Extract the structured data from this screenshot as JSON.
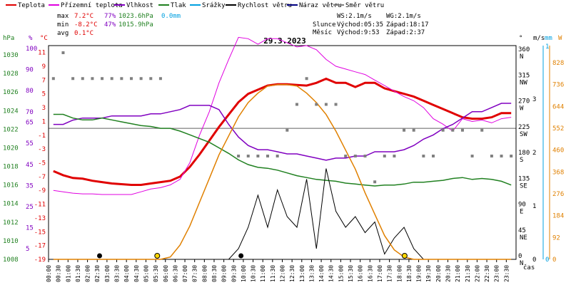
{
  "legend": [
    {
      "label": "Teplota",
      "color": "#e00000"
    },
    {
      "label": "Přízemní teplota",
      "color": "#e000e0"
    },
    {
      "label": "Vlhkost",
      "color": "#8000c0"
    },
    {
      "label": "Tlak",
      "color": "#208020"
    },
    {
      "label": "Srážky",
      "color": "#00a0e0"
    },
    {
      "label": "Rychlost větru",
      "color": "#000000"
    },
    {
      "label": "Náraz větru",
      "color": "#000080"
    },
    {
      "label": "Směr větru",
      "color": "#808080"
    }
  ],
  "stats": {
    "max": {
      "label": "max",
      "temp": "7.2°C",
      "hum": "77%",
      "press": "1023.6hPa",
      "rain": "0.0mm"
    },
    "min": {
      "label": "min",
      "temp": "-8.2°C",
      "hum": "47%",
      "press": "1015.9hPa"
    },
    "avg": {
      "label": "avg",
      "temp": "0.1°C"
    }
  },
  "wind_info": {
    "ws": "WS:2.1m/s",
    "wg": "WG:2.1m/s"
  },
  "sun": {
    "label": "Slunce",
    "sunrise": "Východ:05:35",
    "sunset": "Západ:18:17"
  },
  "moon": {
    "label": "Měsíc",
    "moonrise": "Východ:9:53",
    "moonset": "Západ:2:37"
  },
  "date": "29.3.2023",
  "axis_units": {
    "hpa": "hPa",
    "pct": "%",
    "degc": "°C",
    "deg": "°",
    "ms": "m/s",
    "mm": "mm",
    "wm2": "W"
  },
  "x_axis_label": "čas",
  "chart_data": {
    "type": "line",
    "x": [
      "00:00",
      "00:30",
      "01:00",
      "01:30",
      "02:00",
      "02:30",
      "03:00",
      "03:30",
      "04:00",
      "04:30",
      "05:00",
      "05:30",
      "06:00",
      "06:30",
      "07:00",
      "07:30",
      "08:00",
      "08:30",
      "09:00",
      "09:30",
      "10:00",
      "10:30",
      "11:00",
      "11:30",
      "12:00",
      "12:30",
      "13:00",
      "13:30",
      "14:00",
      "14:30",
      "15:00",
      "15:30",
      "16:00",
      "16:30",
      "17:00",
      "17:30",
      "18:00",
      "18:30",
      "19:00",
      "19:30",
      "20:00",
      "20:30",
      "21:00",
      "21:30",
      "22:00",
      "22:30",
      "23:00",
      "23:30"
    ],
    "axes": {
      "pressure": {
        "unit": "hPa",
        "ticks": [
          1008,
          1010,
          1012,
          1014,
          1016,
          1018,
          1020,
          1022,
          1024,
          1026,
          1028,
          1030
        ],
        "color": "#208020"
      },
      "humidity": {
        "unit": "%",
        "ticks": [
          5,
          15,
          25,
          35,
          45,
          55,
          65,
          70,
          80,
          90,
          100
        ],
        "color": "#8000c0"
      },
      "temperature": {
        "unit": "°C",
        "ticks": [
          -19,
          -17,
          -15,
          -13,
          -11,
          -9,
          -7,
          -5,
          -3,
          -1,
          1,
          3,
          5,
          7,
          9,
          11
        ],
        "color": "#e00000"
      },
      "wind_dir": {
        "unit": "°",
        "ticks": [
          {
            "v": 0,
            "d": "N"
          },
          {
            "v": 45,
            "d": "NE"
          },
          {
            "v": 90,
            "d": "E"
          },
          {
            "v": 135,
            "d": "SE"
          },
          {
            "v": 180,
            "d": "S"
          },
          {
            "v": 225,
            "d": "SW"
          },
          {
            "v": 270,
            "d": "W"
          },
          {
            "v": 315,
            "d": "NW"
          },
          {
            "v": 360,
            "d": "N"
          }
        ]
      },
      "wind_speed": {
        "unit": "m/s",
        "ticks": [
          0,
          1,
          2,
          3
        ],
        "color": "#000000"
      },
      "rain": {
        "unit": "mm",
        "ticks": [
          0,
          1
        ],
        "color": "#00a0e0"
      },
      "radiation": {
        "unit": "W",
        "ticks": [
          0,
          92,
          184,
          276,
          368,
          460,
          552,
          644,
          736,
          828
        ],
        "color": "#e08000"
      }
    },
    "series": [
      {
        "name": "Teplota",
        "axis": "temperature",
        "color": "#e00000",
        "values": [
          -6.2,
          -6.8,
          -7.2,
          -7.3,
          -7.6,
          -7.8,
          -8.0,
          -8.1,
          -8.2,
          -8.2,
          -8.0,
          -7.8,
          -7.6,
          -7.0,
          -5.6,
          -3.8,
          -1.8,
          0.2,
          2.0,
          3.8,
          5.0,
          5.6,
          6.2,
          6.4,
          6.4,
          6.3,
          6.2,
          6.6,
          7.2,
          6.6,
          6.6,
          6.0,
          6.6,
          6.6,
          5.8,
          5.4,
          5.0,
          4.6,
          4.0,
          3.4,
          2.8,
          2.2,
          1.6,
          1.4,
          1.4,
          1.6,
          2.2,
          2.2
        ]
      },
      {
        "name": "Přízemní teplota",
        "axis": "temperature",
        "color": "#e000e0",
        "values": [
          -9.0,
          -9.2,
          -9.4,
          -9.5,
          -9.5,
          -9.6,
          -9.6,
          -9.6,
          -9.6,
          -9.2,
          -8.8,
          -8.6,
          -8.2,
          -7.4,
          -5.0,
          -1.0,
          2.4,
          6.6,
          10.0,
          13.2,
          13.0,
          12.2,
          13.0,
          13.0,
          12.4,
          11.8,
          12.0,
          11.4,
          10.0,
          9.0,
          8.6,
          8.2,
          7.8,
          7.0,
          6.2,
          5.4,
          4.6,
          4.0,
          3.0,
          1.4,
          0.6,
          -0.4,
          1.4,
          1.0,
          1.2,
          0.8,
          1.4,
          1.6
        ]
      },
      {
        "name": "Vlhkost",
        "axis": "humidity",
        "color": "#8000c0",
        "values": [
          64,
          64,
          66,
          67,
          67,
          67,
          68,
          68,
          68,
          68,
          69,
          69,
          70,
          71,
          73,
          73,
          73,
          71,
          64,
          58,
          54,
          52,
          52,
          51,
          50,
          50,
          49,
          48,
          47,
          48,
          48,
          49,
          49,
          51,
          51,
          51,
          52,
          54,
          57,
          59,
          62,
          64,
          67,
          70,
          70,
          72,
          74,
          74
        ]
      },
      {
        "name": "Tlak",
        "axis": "pressure",
        "color": "#208020",
        "values": [
          1023.6,
          1023.6,
          1023.2,
          1023.0,
          1023.0,
          1023.2,
          1023.0,
          1022.8,
          1022.6,
          1022.4,
          1022.3,
          1022.1,
          1022.1,
          1021.8,
          1021.4,
          1021.0,
          1020.6,
          1020.0,
          1019.4,
          1018.7,
          1018.2,
          1017.9,
          1017.8,
          1017.6,
          1017.3,
          1017.0,
          1016.8,
          1016.6,
          1016.5,
          1016.4,
          1016.2,
          1016.1,
          1016.0,
          1015.9,
          1016.0,
          1016.0,
          1016.1,
          1016.3,
          1016.3,
          1016.4,
          1016.5,
          1016.7,
          1016.8,
          1016.6,
          1016.7,
          1016.6,
          1016.4,
          1016.0
        ]
      },
      {
        "name": "Rychlost větru",
        "axis": "wind_speed",
        "color": "#000000",
        "values": [
          0,
          0,
          0,
          0,
          0,
          0,
          0,
          0,
          0,
          0,
          0,
          0,
          0,
          0,
          0,
          0,
          0,
          0,
          0,
          0.2,
          0.6,
          1.2,
          0.6,
          1.3,
          0.8,
          0.6,
          1.5,
          0.2,
          1.7,
          0.9,
          0.6,
          0.8,
          0.5,
          0.7,
          0.1,
          0.4,
          0.6,
          0.2,
          0,
          0,
          0,
          0,
          0,
          0,
          0,
          0,
          0,
          0
        ]
      },
      {
        "name": "Sluneční záření",
        "axis": "radiation",
        "color": "#e08000",
        "values": [
          0,
          0,
          0,
          0,
          0,
          0,
          0,
          0,
          0,
          0,
          0,
          0,
          10,
          60,
          140,
          240,
          340,
          440,
          520,
          600,
          660,
          700,
          730,
          736,
          736,
          730,
          700,
          660,
          610,
          540,
          460,
          380,
          280,
          190,
          100,
          40,
          10,
          0,
          0,
          0,
          0,
          0,
          0,
          0,
          0,
          0,
          0,
          0
        ]
      },
      {
        "name": "Směr větru",
        "axis": "wind_dir",
        "color": "#808080",
        "values": [
          315,
          360,
          315,
          315,
          315,
          315,
          315,
          315,
          315,
          315,
          315,
          315,
          null,
          null,
          null,
          null,
          null,
          null,
          null,
          180,
          180,
          180,
          180,
          180,
          225,
          270,
          315,
          270,
          270,
          270,
          180,
          180,
          180,
          135,
          180,
          180,
          225,
          225,
          180,
          180,
          225,
          225,
          225,
          180,
          225,
          180,
          180,
          180
        ]
      }
    ]
  }
}
